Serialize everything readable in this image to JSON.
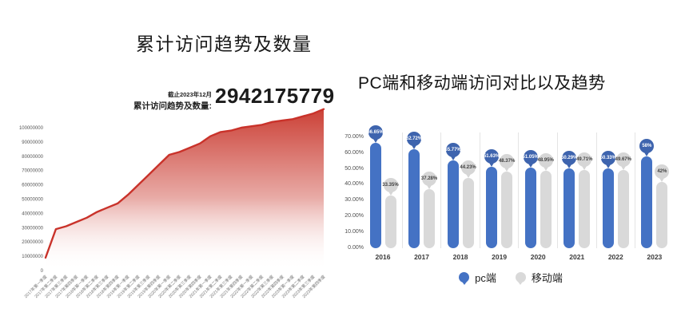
{
  "page": {
    "background": "#ffffff"
  },
  "chart_data": [
    {
      "type": "area",
      "title": "累计访问趋势及数量",
      "annotation_asof": "截止2023年12月",
      "annotation_label": "累计访问趋势及数量:",
      "annotation_value": "2942175779",
      "categories": [
        "2017年第一季度",
        "2017年第二季度",
        "2017年第三季度",
        "2017年第四季度",
        "2018年第一季度",
        "2018年第二季度",
        "2018年第三季度",
        "2018年第四季度",
        "2019年第一季度",
        "2019年第二季度",
        "2019年第三季度",
        "2019年第四季度",
        "2020年第一季度",
        "2020年第二季度",
        "2020年第三季度",
        "2020年第四季度",
        "2021年第一季度",
        "2021年第二季度",
        "2021年第三季度",
        "2021年第四季度",
        "2022年第一季度",
        "2022年第二季度",
        "2022年第三季度",
        "2022年第四季度",
        "2023年第一季度",
        "2023年第二季度",
        "2023年第三季度",
        "2023年第四季度"
      ],
      "values": [
        9000000,
        29000000,
        31000000,
        34000000,
        37000000,
        41000000,
        44000000,
        47000000,
        53000000,
        60000000,
        67000000,
        74000000,
        81000000,
        83000000,
        86000000,
        89000000,
        94000000,
        97000000,
        98000000,
        100000000,
        101000000,
        102000000,
        104000000,
        105000000,
        106000000,
        108000000,
        110000000,
        113000000
      ],
      "y_ticks": [
        100000000,
        90000000,
        80000000,
        70000000,
        60000000,
        50000000,
        40000000,
        30000000,
        20000000,
        10000000,
        0
      ],
      "ylim": [
        0,
        115000000
      ],
      "xlabel": "",
      "ylabel": "",
      "grid": false,
      "legend_position": "none",
      "line_color": "#c9322a",
      "fill_top_color": "#c9372c",
      "fill_bottom_color": "#ffffff"
    },
    {
      "type": "bar",
      "title": "PC端和移动端访问对比以及趋势",
      "categories": [
        "2016",
        "2017",
        "2018",
        "2019",
        "2020",
        "2021",
        "2022",
        "2023"
      ],
      "series": [
        {
          "name": "pc端",
          "color": "#4472c4",
          "balloon_color": "#3e64ae",
          "label_text_color": "#ffffff",
          "values": [
            66.65,
            62.72,
            55.77,
            51.63,
            51.05,
            50.29,
            50.33,
            58
          ],
          "labels": [
            "66.65%",
            "62.72%",
            "55.77%",
            "51.63%",
            "51.05%",
            "50.29%",
            "50.33%",
            "58%"
          ]
        },
        {
          "name": "移动端",
          "color": "#d9d9d9",
          "balloon_color": "#d6d6d6",
          "label_text_color": "#3f3f3f",
          "values": [
            33.35,
            37.28,
            44.23,
            48.37,
            48.95,
            49.71,
            49.67,
            42
          ],
          "labels": [
            "33.35%",
            "37.28%",
            "44.23%",
            "48.37%",
            "48.95%",
            "49.71%",
            "49.67%",
            "42%"
          ]
        }
      ],
      "y_ticks": [
        "70.00%",
        "60.00%",
        "50.00%",
        "40.00%",
        "30.00%",
        "20.00%",
        "10.00%",
        "0.00%"
      ],
      "ylim": [
        0,
        70
      ],
      "grid": false,
      "legend_position": "bottom",
      "legend": [
        {
          "label": "pc端",
          "color": "#4472c4"
        },
        {
          "label": "移动端",
          "color": "#d9d9d9"
        }
      ]
    }
  ]
}
